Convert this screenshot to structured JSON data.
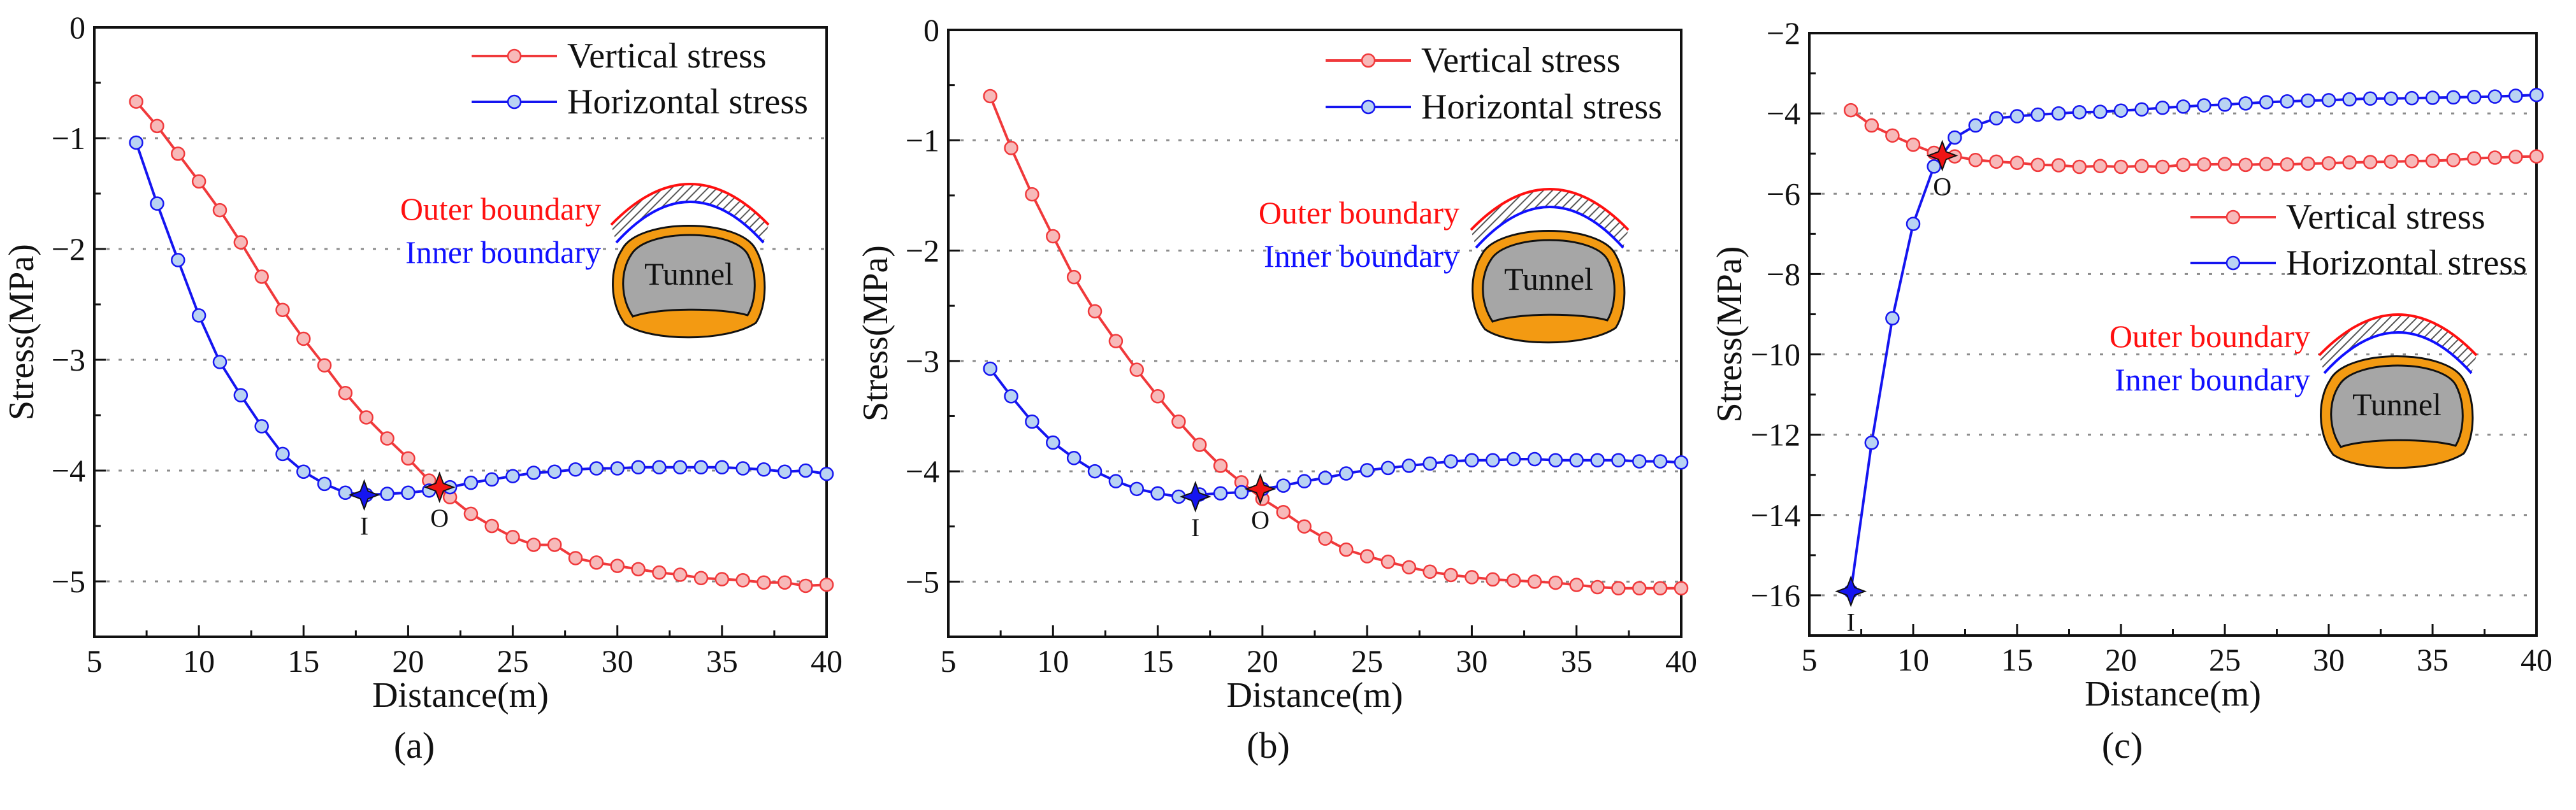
{
  "colors": {
    "vertical": "#f0393b",
    "vertical_marker_fill": "#f7b9b9",
    "horizontal": "#1515f0",
    "horizontal_marker_fill": "#b9d3f3",
    "outer": "#ff1010",
    "inner": "#1010ff",
    "lining": "#f39a12",
    "rock": "#a6a6a6",
    "grid": "#8c8c8c"
  },
  "chart_data": [
    {
      "type": "line",
      "panel_label": "(a)",
      "xlabel": "Distance(m)",
      "ylabel": "Stress(MPa)",
      "xlim": [
        5,
        40
      ],
      "ylim": [
        -5.5,
        0
      ],
      "xticks": [
        "5",
        "10",
        "15",
        "20",
        "25",
        "30",
        "35",
        "40"
      ],
      "yticks": [
        {
          "v": 0,
          "label": "0"
        },
        {
          "v": -1,
          "label": "−1"
        },
        {
          "v": -2,
          "label": "−2"
        },
        {
          "v": -3,
          "label": "−3"
        },
        {
          "v": -4,
          "label": "−4"
        },
        {
          "v": -5,
          "label": "−5"
        }
      ],
      "grid_y": [
        -1,
        -2,
        -3,
        -4,
        -5
      ],
      "legend": {
        "placement": "top-right",
        "entries": [
          "Vertical stress",
          "Horizontal stress"
        ]
      },
      "x": [
        7,
        8,
        9,
        10,
        11,
        12,
        13,
        14,
        15,
        16,
        17,
        18,
        19,
        20,
        21,
        22,
        23,
        24,
        25,
        26,
        27,
        28,
        29,
        30,
        31,
        32,
        33,
        34,
        35,
        36,
        37,
        38,
        39,
        40
      ],
      "series": [
        {
          "name": "Vertical stress",
          "values": [
            -0.67,
            -0.89,
            -1.14,
            -1.39,
            -1.65,
            -1.94,
            -2.25,
            -2.55,
            -2.81,
            -3.05,
            -3.3,
            -3.52,
            -3.71,
            -3.89,
            -4.09,
            -4.24,
            -4.39,
            -4.5,
            -4.6,
            -4.67,
            -4.67,
            -4.79,
            -4.83,
            -4.86,
            -4.89,
            -4.92,
            -4.94,
            -4.97,
            -4.98,
            -4.99,
            -5.01,
            -5.01,
            -5.04,
            -5.03
          ]
        },
        {
          "name": "Horizontal stress",
          "values": [
            -1.04,
            -1.59,
            -2.1,
            -2.6,
            -3.02,
            -3.32,
            -3.6,
            -3.85,
            -4.01,
            -4.12,
            -4.2,
            -4.22,
            -4.21,
            -4.2,
            -4.18,
            -4.15,
            -4.11,
            -4.08,
            -4.05,
            -4.02,
            -4.01,
            -3.99,
            -3.98,
            -3.98,
            -3.97,
            -3.97,
            -3.97,
            -3.97,
            -3.97,
            -3.98,
            -3.99,
            -4.01,
            -4.0,
            -4.03
          ]
        }
      ],
      "points": [
        {
          "label": "I",
          "x": 17.9,
          "y": -4.22,
          "color": "#1515f0"
        },
        {
          "label": "O",
          "x": 21.5,
          "y": -4.15,
          "color": "#f01515"
        }
      ],
      "inset": {
        "outer_label": "Outer boundary",
        "inner_label": "Inner boundary",
        "tunnel_label": "Tunnel"
      }
    },
    {
      "type": "line",
      "panel_label": "(b)",
      "xlabel": "Distance(m)",
      "ylabel": "Stress(MPa)",
      "xlim": [
        5,
        40
      ],
      "ylim": [
        -5.5,
        0
      ],
      "xticks": [
        "5",
        "10",
        "15",
        "20",
        "25",
        "30",
        "35",
        "40"
      ],
      "yticks": [
        {
          "v": 0,
          "label": "0"
        },
        {
          "v": -1,
          "label": "−1"
        },
        {
          "v": -2,
          "label": "−2"
        },
        {
          "v": -3,
          "label": "−3"
        },
        {
          "v": -4,
          "label": "−4"
        },
        {
          "v": -5,
          "label": "−5"
        }
      ],
      "grid_y": [
        -1,
        -2,
        -3,
        -4,
        -5
      ],
      "legend": {
        "placement": "top-right",
        "entries": [
          "Vertical stress",
          "Horizontal stress"
        ]
      },
      "x": [
        7,
        8,
        9,
        10,
        11,
        12,
        13,
        14,
        15,
        16,
        17,
        18,
        19,
        20,
        21,
        22,
        23,
        24,
        25,
        26,
        27,
        28,
        29,
        30,
        31,
        32,
        33,
        34,
        35,
        36,
        37,
        38,
        39,
        40
      ],
      "series": [
        {
          "name": "Vertical stress",
          "values": [
            -0.6,
            -1.07,
            -1.49,
            -1.87,
            -2.24,
            -2.55,
            -2.82,
            -3.08,
            -3.32,
            -3.55,
            -3.76,
            -3.95,
            -4.1,
            -4.25,
            -4.37,
            -4.5,
            -4.61,
            -4.71,
            -4.77,
            -4.82,
            -4.87,
            -4.91,
            -4.94,
            -4.96,
            -4.98,
            -4.99,
            -5.0,
            -5.01,
            -5.03,
            -5.05,
            -5.06,
            -5.06,
            -5.06,
            -5.06
          ]
        },
        {
          "name": "Horizontal stress",
          "values": [
            -3.07,
            -3.32,
            -3.55,
            -3.74,
            -3.88,
            -4.0,
            -4.09,
            -4.16,
            -4.2,
            -4.23,
            -4.21,
            -4.2,
            -4.19,
            -4.16,
            -4.13,
            -4.09,
            -4.06,
            -4.02,
            -3.99,
            -3.97,
            -3.95,
            -3.93,
            -3.91,
            -3.9,
            -3.9,
            -3.89,
            -3.89,
            -3.9,
            -3.9,
            -3.9,
            -3.9,
            -3.91,
            -3.91,
            -3.92
          ]
        }
      ],
      "points": [
        {
          "label": "I",
          "x": 16.8,
          "y": -4.23,
          "color": "#1515f0"
        },
        {
          "label": "O",
          "x": 19.9,
          "y": -4.16,
          "color": "#f01515"
        }
      ],
      "inset": {
        "outer_label": "Outer boundary",
        "inner_label": "Inner boundary",
        "tunnel_label": "Tunnel"
      }
    },
    {
      "type": "line",
      "panel_label": "(c)",
      "xlabel": "Distance(m)",
      "ylabel": "Stress(MPa)",
      "xlim": [
        5,
        40
      ],
      "ylim": [
        -17,
        -2
      ],
      "xticks": [
        "5",
        "10",
        "15",
        "20",
        "25",
        "30",
        "35",
        "40"
      ],
      "yticks": [
        {
          "v": -2,
          "label": "−2"
        },
        {
          "v": -4,
          "label": "−4"
        },
        {
          "v": -6,
          "label": "−6"
        },
        {
          "v": -8,
          "label": "−8"
        },
        {
          "v": -10,
          "label": "−10"
        },
        {
          "v": -12,
          "label": "−12"
        },
        {
          "v": -14,
          "label": "−14"
        },
        {
          "v": -16,
          "label": "−16"
        }
      ],
      "grid_y": [
        -4,
        -6,
        -8,
        -10,
        -12,
        -14,
        -16
      ],
      "legend": {
        "placement": "center-right",
        "entries": [
          "Vertical stress",
          "Horizontal stress"
        ]
      },
      "x": [
        7,
        8,
        9,
        10,
        11,
        12,
        13,
        14,
        15,
        16,
        17,
        18,
        19,
        20,
        21,
        22,
        23,
        24,
        25,
        26,
        27,
        28,
        29,
        30,
        31,
        32,
        33,
        34,
        35,
        36,
        37,
        38,
        39,
        40
      ],
      "series": [
        {
          "name": "Vertical stress",
          "values": [
            -3.92,
            -4.3,
            -4.55,
            -4.78,
            -4.98,
            -5.07,
            -5.16,
            -5.2,
            -5.23,
            -5.28,
            -5.29,
            -5.33,
            -5.31,
            -5.33,
            -5.31,
            -5.33,
            -5.28,
            -5.27,
            -5.26,
            -5.28,
            -5.26,
            -5.27,
            -5.25,
            -5.24,
            -5.22,
            -5.21,
            -5.2,
            -5.19,
            -5.18,
            -5.16,
            -5.12,
            -5.1,
            -5.08,
            -5.07
          ]
        },
        {
          "name": "Horizontal stress",
          "values": [
            -15.9,
            -12.2,
            -9.1,
            -6.75,
            -5.32,
            -4.6,
            -4.3,
            -4.12,
            -4.07,
            -4.03,
            -4.0,
            -3.97,
            -3.96,
            -3.93,
            -3.9,
            -3.86,
            -3.83,
            -3.8,
            -3.78,
            -3.75,
            -3.72,
            -3.7,
            -3.68,
            -3.67,
            -3.65,
            -3.63,
            -3.63,
            -3.62,
            -3.61,
            -3.6,
            -3.59,
            -3.58,
            -3.56,
            -3.54
          ]
        }
      ],
      "points": [
        {
          "label": "I",
          "x": 7.0,
          "y": -15.9,
          "color": "#1515f0"
        },
        {
          "label": "O",
          "x": 11.4,
          "y": -5.05,
          "color": "#f01515"
        }
      ],
      "inset": {
        "outer_label": "Outer boundary",
        "inner_label": "Inner boundary",
        "tunnel_label": "Tunnel"
      }
    }
  ]
}
